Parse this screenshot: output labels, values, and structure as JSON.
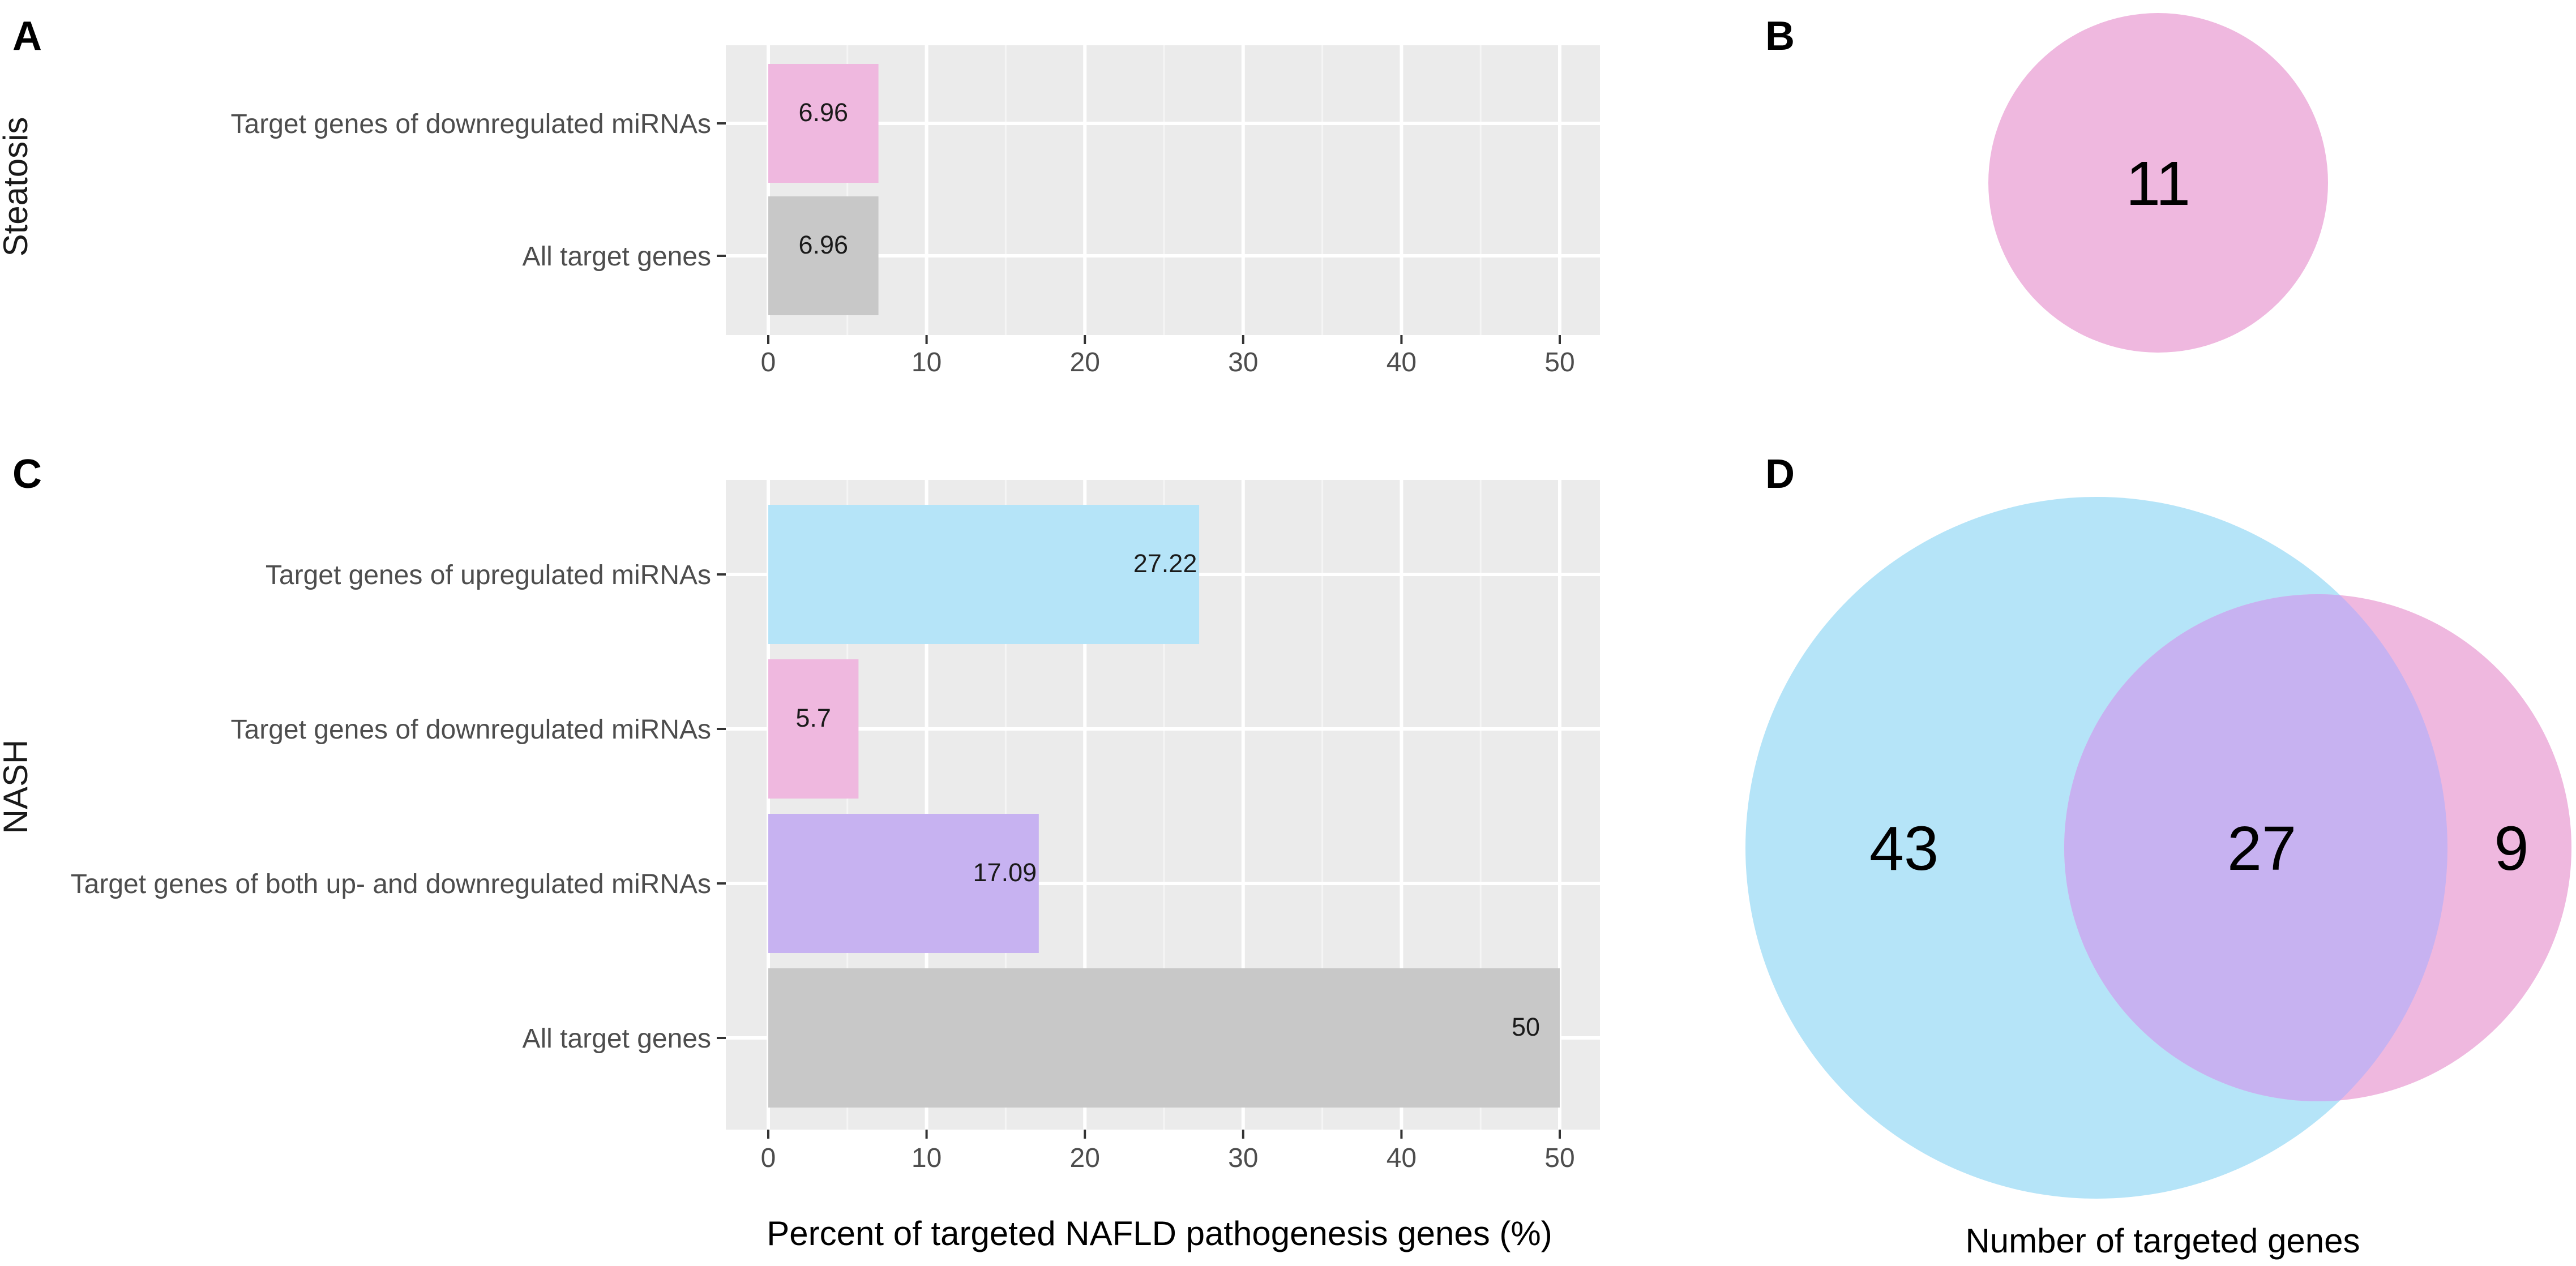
{
  "panels": {
    "A": "A",
    "B": "B",
    "C": "C",
    "D": "D"
  },
  "chart_data": [
    {
      "type": "bar",
      "orientation": "horizontal",
      "panel": "A",
      "facet_label": "Steatosis",
      "categories": [
        "Target genes of downregulated miRNAs",
        "All target genes"
      ],
      "values": [
        6.96,
        6.96
      ],
      "value_labels": [
        "6.96",
        "6.96"
      ],
      "colors": [
        "#efb8df",
        "#c8c8c8"
      ],
      "xlim": [
        0,
        50
      ],
      "xticks": [
        0,
        10,
        20,
        30,
        40,
        50
      ],
      "xlabel": "",
      "grid": true
    },
    {
      "type": "bar",
      "orientation": "horizontal",
      "panel": "C",
      "facet_label": "NASH",
      "categories": [
        "Target genes of upregulated miRNAs",
        "Target genes of downregulated miRNAs",
        "Target genes of both up- and downregulated miRNAs",
        "All target genes"
      ],
      "values": [
        27.22,
        5.7,
        17.09,
        50
      ],
      "value_labels": [
        "27.22",
        "5.7",
        "17.09",
        "50"
      ],
      "colors": [
        "#b5e4f8",
        "#efb8df",
        "#c7b2f1",
        "#c8c8c8"
      ],
      "xlim": [
        0,
        50
      ],
      "xticks": [
        0,
        10,
        20,
        30,
        40,
        50
      ],
      "xlabel": "Percent of targeted NAFLD pathogenesis genes (%)",
      "grid": true
    },
    {
      "type": "venn",
      "panel": "B",
      "sets": [
        {
          "name": "downregulated",
          "color": "#efb8df"
        }
      ],
      "regions": [
        {
          "label": "11",
          "value": 11
        }
      ]
    },
    {
      "type": "venn",
      "panel": "D",
      "sets": [
        {
          "name": "upregulated",
          "color": "#b5e4f8"
        },
        {
          "name": "downregulated",
          "color": "#efb8df"
        }
      ],
      "regions": [
        {
          "label": "43",
          "value": 43,
          "region": "upregulated only"
        },
        {
          "label": "27",
          "value": 27,
          "region": "both"
        },
        {
          "label": "9",
          "value": 9,
          "region": "downregulated only"
        }
      ],
      "xlabel": "Number of targeted genes"
    }
  ]
}
